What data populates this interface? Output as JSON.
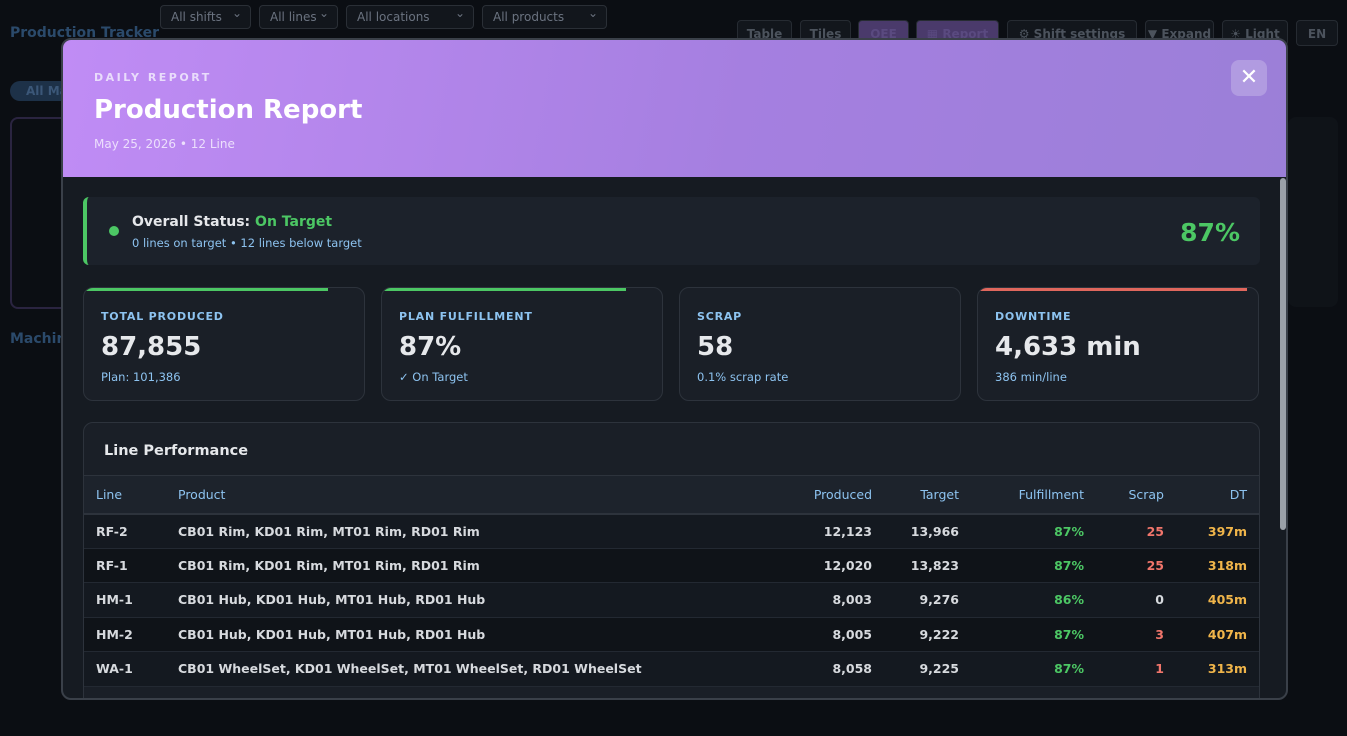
{
  "app": {
    "title": "Production Tracker",
    "filters": [
      "All shifts",
      "All lines",
      "All locations",
      "All products"
    ],
    "buttons": [
      "Table",
      "Tiles",
      "OEE",
      "Report",
      "Shift settings",
      "Expand",
      "Light",
      "EN"
    ],
    "pill": "All Ma",
    "section": "Machin"
  },
  "modal": {
    "eyebrow": "DAILY REPORT",
    "title": "Production Report",
    "subtitle": "May 25, 2026 • 12 Line",
    "status": {
      "label": "Overall Status:",
      "value": "On Target",
      "detail": "0 lines on target • 12 lines below target",
      "percent": "87%"
    },
    "kpis": [
      {
        "label": "TOTAL PRODUCED",
        "value": "87,855",
        "sub": "Plan: 101,386"
      },
      {
        "label": "PLAN FULFILLMENT",
        "value": "87%",
        "sub": "✓ On Target"
      },
      {
        "label": "SCRAP",
        "value": "58",
        "sub": "0.1% scrap rate"
      },
      {
        "label": "DOWNTIME",
        "value": "4,633 min",
        "sub": "386 min/line"
      }
    ],
    "table": {
      "title": "Line Performance",
      "columns": [
        "Line",
        "Product",
        "Produced",
        "Target",
        "Fulfillment",
        "Scrap",
        "DT"
      ],
      "rows": [
        [
          "RF-2",
          "CB01 Rim, KD01 Rim, MT01 Rim, RD01 Rim",
          "12,123",
          "13,966",
          "87%",
          "25",
          "397m"
        ],
        [
          "RF-1",
          "CB01 Rim, KD01 Rim, MT01 Rim, RD01 Rim",
          "12,020",
          "13,823",
          "87%",
          "25",
          "318m"
        ],
        [
          "HM-1",
          "CB01 Hub, KD01 Hub, MT01 Hub, RD01 Hub",
          "8,003",
          "9,276",
          "86%",
          "0",
          "405m"
        ],
        [
          "HM-2",
          "CB01 Hub, KD01 Hub, MT01 Hub, RD01 Hub",
          "8,005",
          "9,222",
          "87%",
          "3",
          "407m"
        ],
        [
          "WA-1",
          "CB01 WheelSet, KD01 WheelSet, MT01 WheelSet, RD01 WheelSet",
          "8,058",
          "9,225",
          "87%",
          "1",
          "313m"
        ]
      ]
    }
  }
}
